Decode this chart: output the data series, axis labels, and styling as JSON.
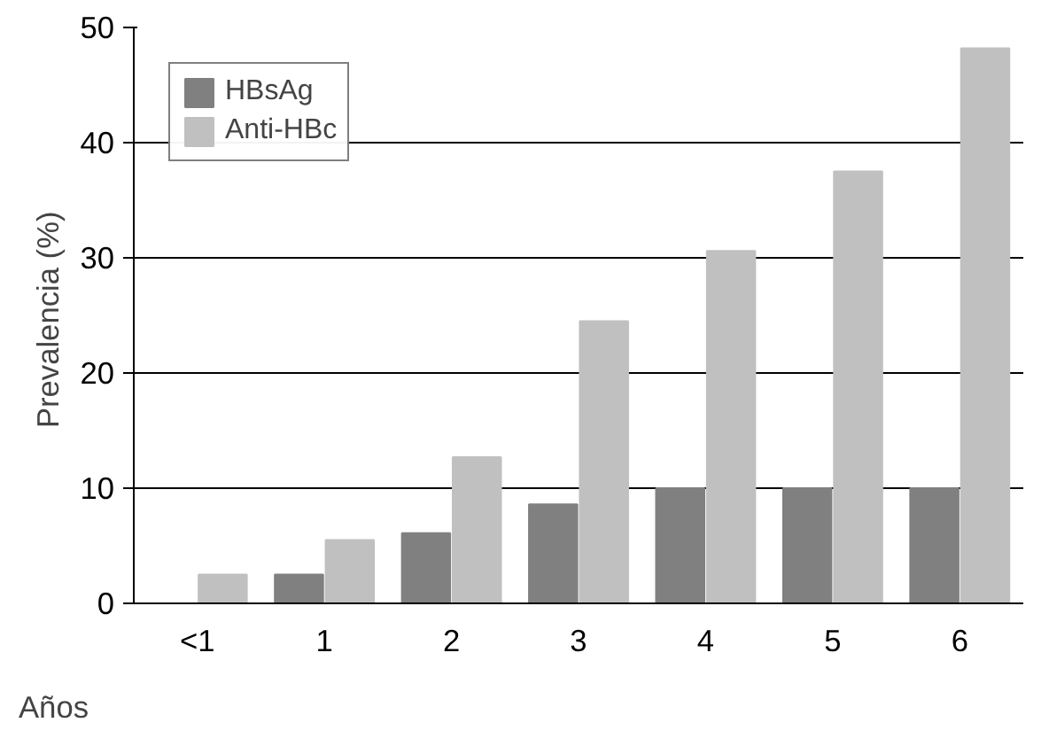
{
  "chart_data": {
    "type": "bar",
    "ylabel": "Prevalencia  (%)",
    "xlabel": "Años",
    "categories": [
      "<1",
      "1",
      "2",
      "3",
      "4",
      "5",
      "6"
    ],
    "series": [
      {
        "name": "HBsAg",
        "color": "#808080",
        "values": [
          0,
          2.5,
          6.1,
          8.6,
          10,
          10,
          10
        ]
      },
      {
        "name": "Anti-HBc",
        "color": "#c0c0c0",
        "values": [
          2.5,
          5.5,
          12.7,
          24.5,
          30.6,
          37.5,
          48.2
        ]
      }
    ],
    "ylim": [
      0,
      50
    ],
    "yticks": [
      0,
      10,
      20,
      30,
      40,
      50
    ],
    "grid": "y",
    "legend": "top left"
  }
}
